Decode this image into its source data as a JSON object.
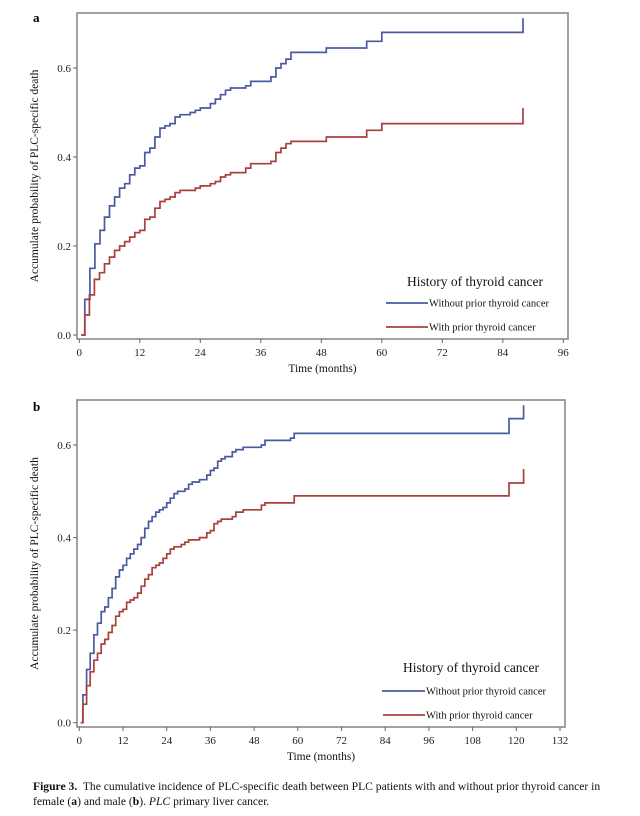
{
  "chart_data": [
    {
      "panel": "a",
      "type": "line",
      "step": true,
      "xlabel": "Time (months)",
      "ylabel": "Accumulate probability of PLC-specific death",
      "xlim": [
        0,
        96
      ],
      "ylim": [
        0,
        0.72
      ],
      "xticks": [
        0,
        12,
        24,
        36,
        48,
        60,
        72,
        84,
        96
      ],
      "yticks": [
        "0.0",
        "0.2",
        "0.4",
        "0.6"
      ],
      "grid": false,
      "legend": {
        "title": "History of thyroid cancer",
        "placement": "bottom-right"
      },
      "series": [
        {
          "name": "Without prior thyroid cancer",
          "color": "#4a5aa0",
          "points": [
            [
              0.4,
              0
            ],
            [
              1.1,
              0.08
            ],
            [
              2.1,
              0.15
            ],
            [
              3.1,
              0.205
            ],
            [
              4.1,
              0.235
            ],
            [
              5,
              0.265
            ],
            [
              6,
              0.29
            ],
            [
              7,
              0.31
            ],
            [
              8,
              0.33
            ],
            [
              9,
              0.34
            ],
            [
              10,
              0.36
            ],
            [
              11,
              0.375
            ],
            [
              12,
              0.38
            ],
            [
              13,
              0.41
            ],
            [
              14,
              0.42
            ],
            [
              15,
              0.445
            ],
            [
              16,
              0.465
            ],
            [
              17,
              0.47
            ],
            [
              18,
              0.475
            ],
            [
              19,
              0.49
            ],
            [
              20,
              0.495
            ],
            [
              22,
              0.5
            ],
            [
              23,
              0.505
            ],
            [
              24,
              0.51
            ],
            [
              26,
              0.52
            ],
            [
              27,
              0.53
            ],
            [
              28,
              0.54
            ],
            [
              29,
              0.55
            ],
            [
              30,
              0.555
            ],
            [
              33,
              0.56
            ],
            [
              34,
              0.57
            ],
            [
              38,
              0.58
            ],
            [
              39,
              0.6
            ],
            [
              40,
              0.61
            ],
            [
              41,
              0.62
            ],
            [
              42,
              0.635
            ],
            [
              49,
              0.645
            ],
            [
              57,
              0.66
            ],
            [
              60,
              0.68
            ],
            [
              88,
              0.712
            ]
          ]
        },
        {
          "name": "With prior thyroid cancer",
          "color": "#a8403c",
          "points": [
            [
              0.4,
              0
            ],
            [
              1.1,
              0.045
            ],
            [
              2,
              0.09
            ],
            [
              3,
              0.125
            ],
            [
              4,
              0.14
            ],
            [
              5,
              0.16
            ],
            [
              6,
              0.175
            ],
            [
              7,
              0.19
            ],
            [
              8,
              0.2
            ],
            [
              9,
              0.21
            ],
            [
              10,
              0.22
            ],
            [
              11,
              0.23
            ],
            [
              12,
              0.235
            ],
            [
              13,
              0.26
            ],
            [
              14,
              0.265
            ],
            [
              15,
              0.285
            ],
            [
              16,
              0.3
            ],
            [
              17,
              0.305
            ],
            [
              18,
              0.31
            ],
            [
              19,
              0.32
            ],
            [
              20,
              0.325
            ],
            [
              23,
              0.33
            ],
            [
              24,
              0.335
            ],
            [
              26,
              0.34
            ],
            [
              27,
              0.345
            ],
            [
              28,
              0.355
            ],
            [
              29,
              0.36
            ],
            [
              30,
              0.365
            ],
            [
              33,
              0.375
            ],
            [
              34,
              0.385
            ],
            [
              38,
              0.39
            ],
            [
              39,
              0.41
            ],
            [
              40,
              0.42
            ],
            [
              41,
              0.43
            ],
            [
              42,
              0.435
            ],
            [
              49,
              0.445
            ],
            [
              57,
              0.46
            ],
            [
              60,
              0.475
            ],
            [
              88,
              0.51
            ]
          ]
        }
      ]
    },
    {
      "panel": "b",
      "type": "line",
      "step": true,
      "xlabel": "Time (months)",
      "ylabel": "Accumulate probability of PLC-specific death",
      "xlim": [
        0,
        132
      ],
      "ylim": [
        0,
        0.7
      ],
      "xticks": [
        0,
        12,
        24,
        36,
        48,
        60,
        72,
        84,
        96,
        108,
        120,
        132
      ],
      "yticks": [
        "0.0",
        "0.2",
        "0.4",
        "0.6"
      ],
      "grid": false,
      "legend": {
        "title": "History of thyroid cancer",
        "placement": "bottom-right"
      },
      "series": [
        {
          "name": "Without prior thyroid cancer",
          "color": "#4a5aa0",
          "points": [
            [
              0.4,
              0
            ],
            [
              1,
              0.06
            ],
            [
              2,
              0.115
            ],
            [
              3,
              0.15
            ],
            [
              4,
              0.19
            ],
            [
              5,
              0.215
            ],
            [
              6,
              0.24
            ],
            [
              7,
              0.25
            ],
            [
              8,
              0.27
            ],
            [
              9,
              0.29
            ],
            [
              10,
              0.315
            ],
            [
              11,
              0.33
            ],
            [
              12,
              0.34
            ],
            [
              13,
              0.355
            ],
            [
              14,
              0.365
            ],
            [
              15,
              0.375
            ],
            [
              16,
              0.385
            ],
            [
              17,
              0.4
            ],
            [
              18,
              0.42
            ],
            [
              19,
              0.435
            ],
            [
              20,
              0.445
            ],
            [
              21,
              0.455
            ],
            [
              22,
              0.46
            ],
            [
              23,
              0.465
            ],
            [
              24,
              0.475
            ],
            [
              25,
              0.485
            ],
            [
              26,
              0.495
            ],
            [
              27,
              0.5
            ],
            [
              29,
              0.505
            ],
            [
              30,
              0.515
            ],
            [
              31,
              0.52
            ],
            [
              33,
              0.525
            ],
            [
              35,
              0.535
            ],
            [
              36,
              0.545
            ],
            [
              37,
              0.55
            ],
            [
              38,
              0.565
            ],
            [
              39,
              0.57
            ],
            [
              40,
              0.575
            ],
            [
              42,
              0.585
            ],
            [
              43,
              0.59
            ],
            [
              45,
              0.595
            ],
            [
              50,
              0.6
            ],
            [
              51,
              0.61
            ],
            [
              58,
              0.615
            ],
            [
              59,
              0.625
            ],
            [
              118,
              0.657
            ],
            [
              122,
              0.686
            ]
          ]
        },
        {
          "name": "With prior thyroid cancer",
          "color": "#a8403c",
          "points": [
            [
              0.4,
              0
            ],
            [
              1,
              0.04
            ],
            [
              2,
              0.08
            ],
            [
              3,
              0.11
            ],
            [
              4,
              0.135
            ],
            [
              5,
              0.15
            ],
            [
              6,
              0.17
            ],
            [
              7,
              0.18
            ],
            [
              8,
              0.195
            ],
            [
              9,
              0.21
            ],
            [
              10,
              0.23
            ],
            [
              11,
              0.24
            ],
            [
              12,
              0.245
            ],
            [
              13,
              0.26
            ],
            [
              14,
              0.265
            ],
            [
              15,
              0.27
            ],
            [
              16,
              0.28
            ],
            [
              17,
              0.295
            ],
            [
              18,
              0.31
            ],
            [
              19,
              0.32
            ],
            [
              20,
              0.335
            ],
            [
              21,
              0.34
            ],
            [
              22,
              0.345
            ],
            [
              23,
              0.355
            ],
            [
              24,
              0.365
            ],
            [
              25,
              0.375
            ],
            [
              26,
              0.38
            ],
            [
              28,
              0.385
            ],
            [
              29,
              0.39
            ],
            [
              30,
              0.395
            ],
            [
              33,
              0.4
            ],
            [
              35,
              0.41
            ],
            [
              36,
              0.415
            ],
            [
              37,
              0.43
            ],
            [
              38,
              0.435
            ],
            [
              39,
              0.44
            ],
            [
              42,
              0.445
            ],
            [
              43,
              0.455
            ],
            [
              45,
              0.46
            ],
            [
              50,
              0.47
            ],
            [
              51,
              0.475
            ],
            [
              59,
              0.49
            ],
            [
              118,
              0.518
            ],
            [
              122,
              0.548
            ]
          ]
        }
      ]
    }
  ],
  "caption": {
    "label": "Figure 3.",
    "text_1": "The cumulative incidence of PLC-specific death between PLC patients with and without prior thyroid cancer in female (",
    "a": "a",
    "text_2": ") and male (",
    "b": "b",
    "text_3": "). ",
    "abbr": "PLC",
    "text_4": " primary liver cancer."
  }
}
